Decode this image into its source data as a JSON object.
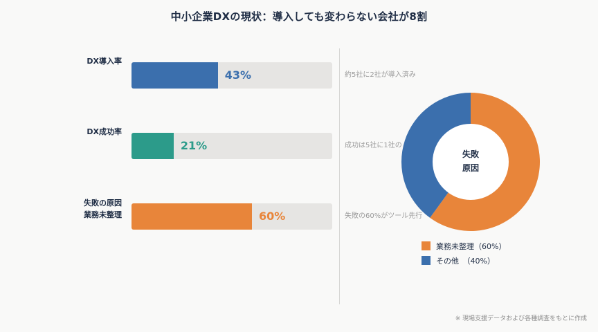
{
  "title": "中小企業DXの現状：導入しても変わらない会社が8割",
  "chart_data": [
    {
      "type": "bar",
      "orientation": "horizontal",
      "categories": [
        "DX導入率",
        "DX成功率",
        "失敗の原因\n業務未整理"
      ],
      "values": [
        43,
        21,
        60
      ],
      "value_labels": [
        "43%",
        "21%",
        "60%"
      ],
      "colors": [
        "#3b6fad",
        "#2c9b8a",
        "#e8853a"
      ],
      "xlim": [
        0,
        100
      ],
      "notes": [
        "約5社に2社が導入済み",
        "成功は5社に1社の",
        "失敗の60%がツール先行"
      ]
    },
    {
      "type": "pie",
      "style": "donut",
      "center_label": [
        "失敗",
        "原因"
      ],
      "labels": [
        "業務未整理（60%）",
        "その他　（40%）"
      ],
      "values": [
        60,
        40
      ],
      "colors": [
        "#e8853a",
        "#3b6fad"
      ]
    }
  ],
  "footnote": "※ 現場支援データおよび各種調査をもとに作成"
}
